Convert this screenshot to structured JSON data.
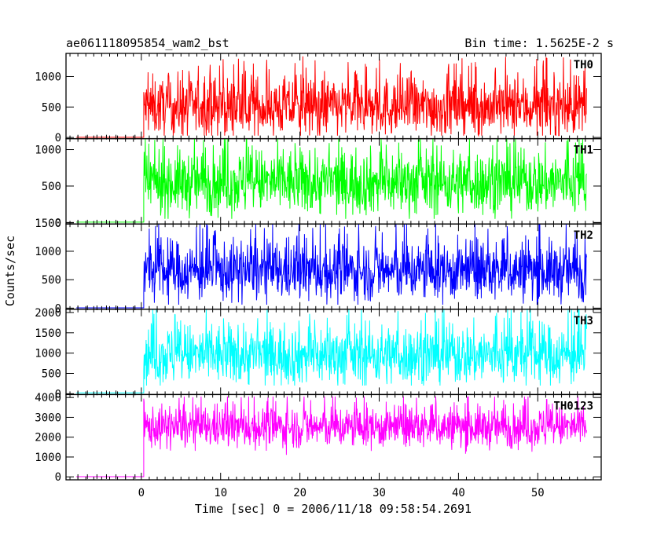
{
  "chart_data": {
    "type": "line",
    "title_left": "ae061118095854_wam2_bst",
    "title_right": "Bin time: 1.5625E-2 s",
    "ylabel": "Counts/sec",
    "xlabel": "Time [sec] 0 = 2006/11/18 09:58:54.2691",
    "xlim": [
      -9.5,
      58
    ],
    "x_ticks": [
      0,
      10,
      20,
      30,
      40,
      50
    ],
    "burst_start": 0.3,
    "data_end": 56.2,
    "panels": [
      {
        "label": "TH0",
        "color": "#ff0000",
        "ylim": [
          -20,
          1380
        ],
        "yticks": [
          0,
          500,
          1000
        ],
        "pre_level": 5,
        "mean": 500,
        "spread": 240,
        "min": 30,
        "max": 1380
      },
      {
        "label": "TH1",
        "color": "#00ff00",
        "ylim": [
          -20,
          1150
        ],
        "yticks": [
          0,
          500,
          1000
        ],
        "pre_level": 5,
        "mean": 550,
        "spread": 220,
        "min": 50,
        "max": 1150
      },
      {
        "label": "TH2",
        "color": "#0000ff",
        "ylim": [
          -20,
          1480
        ],
        "yticks": [
          0,
          500,
          1000,
          1500
        ],
        "pre_level": 5,
        "mean": 650,
        "spread": 260,
        "min": 60,
        "max": 1480
      },
      {
        "label": "TH3",
        "color": "#00ffff",
        "ylim": [
          -20,
          2080
        ],
        "yticks": [
          0,
          500,
          1000,
          1500,
          2000
        ],
        "pre_level": 20,
        "mean": 950,
        "spread": 370,
        "min": 200,
        "max": 2080
      },
      {
        "label": "TH0123",
        "color": "#ff00ff",
        "ylim": [
          -150,
          4150
        ],
        "yticks": [
          0,
          1000,
          2000,
          3000,
          4000
        ],
        "pre_level": 10,
        "mean": 2500,
        "spread": 520,
        "min": 1000,
        "max": 4050
      }
    ]
  }
}
